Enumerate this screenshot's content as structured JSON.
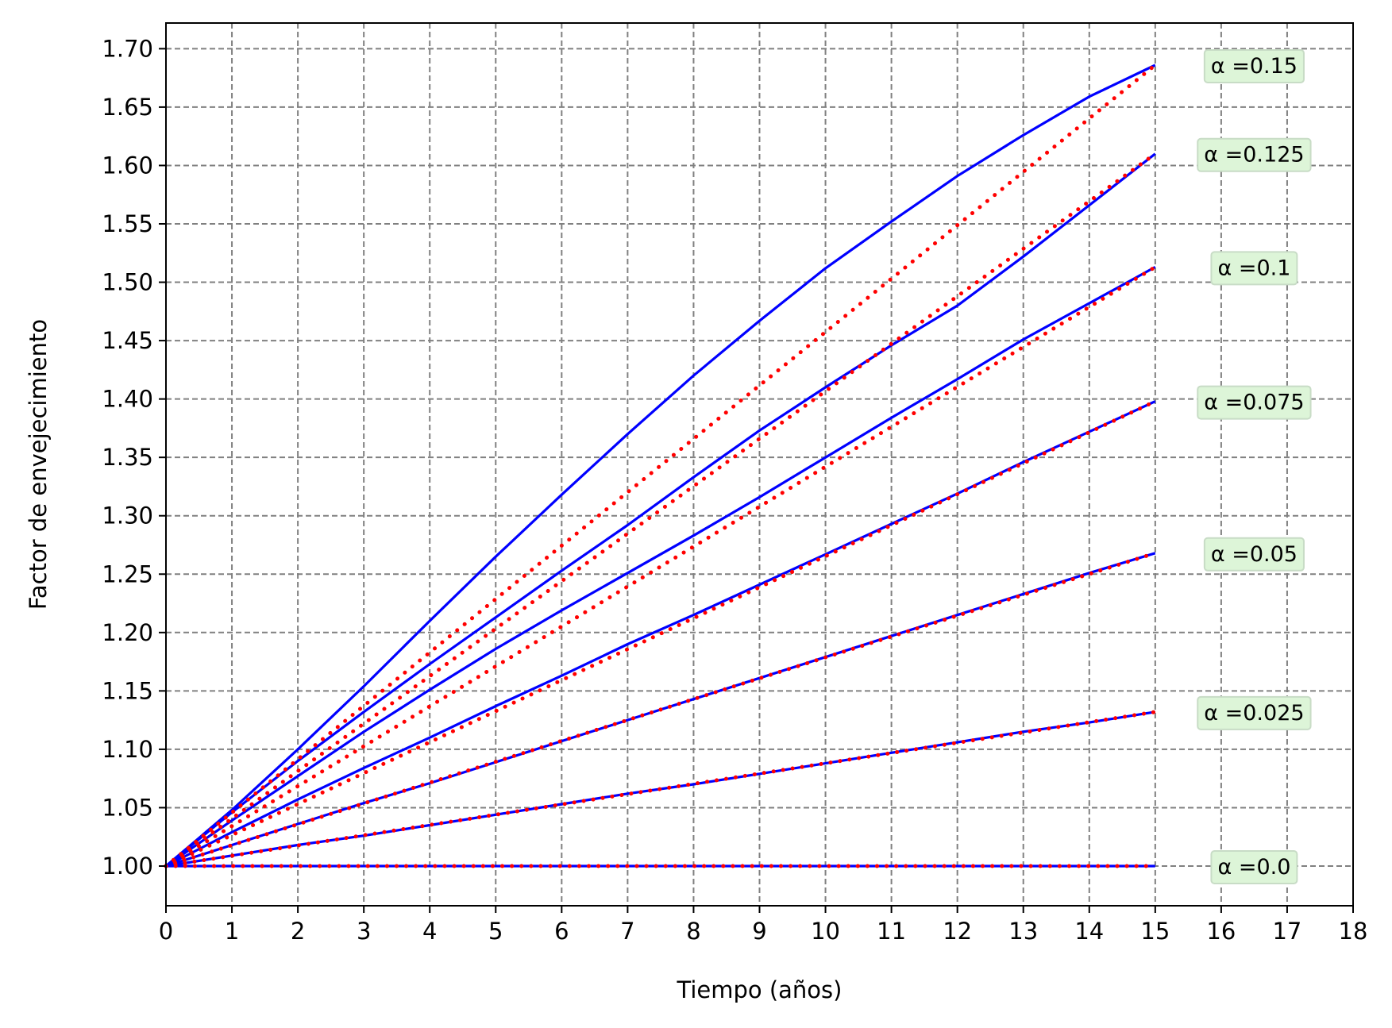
{
  "chart_data": {
    "type": "line",
    "title": "",
    "xlabel": "Tiempo (años)",
    "ylabel": "Factor de envejecimiento",
    "xlim": [
      0,
      18
    ],
    "ylim": [
      0.966,
      1.722
    ],
    "xticks": [
      0,
      1,
      2,
      3,
      4,
      5,
      6,
      7,
      8,
      9,
      10,
      11,
      12,
      13,
      14,
      15,
      16,
      17,
      18
    ],
    "yticks": [
      1.0,
      1.05,
      1.1,
      1.15,
      1.2,
      1.25,
      1.3,
      1.35,
      1.4,
      1.45,
      1.5,
      1.55,
      1.6,
      1.65,
      1.7
    ],
    "grid": true,
    "legend": "none",
    "colors": {
      "solid": "#0000ff",
      "dotted": "#ff0000",
      "annotation_bg": "#ddf5d8",
      "grid": "#808080"
    },
    "x": [
      0,
      1,
      2,
      3,
      4,
      5,
      6,
      7,
      8,
      9,
      10,
      11,
      12,
      13,
      14,
      15
    ],
    "series": [
      {
        "alpha": 0.0,
        "final": 1.0,
        "solid": [
          1.0,
          1.0,
          1.0,
          1.0,
          1.0,
          1.0,
          1.0,
          1.0,
          1.0,
          1.0,
          1.0,
          1.0,
          1.0,
          1.0,
          1.0,
          1.0
        ]
      },
      {
        "alpha": 0.025,
        "final": 1.132,
        "solid": [
          1.0,
          1.009,
          1.018,
          1.026,
          1.035,
          1.044,
          1.053,
          1.062,
          1.07,
          1.079,
          1.088,
          1.097,
          1.106,
          1.115,
          1.123,
          1.132
        ]
      },
      {
        "alpha": 0.05,
        "final": 1.268,
        "solid": [
          1.0,
          1.018,
          1.036,
          1.054,
          1.071,
          1.089,
          1.107,
          1.125,
          1.143,
          1.161,
          1.179,
          1.197,
          1.215,
          1.233,
          1.251,
          1.268
        ]
      },
      {
        "alpha": 0.075,
        "final": 1.398,
        "solid": [
          1.0,
          1.029,
          1.057,
          1.084,
          1.11,
          1.137,
          1.163,
          1.19,
          1.215,
          1.241,
          1.267,
          1.293,
          1.319,
          1.346,
          1.372,
          1.398
        ]
      },
      {
        "alpha": 0.1,
        "final": 1.513,
        "solid": [
          1.0,
          1.039,
          1.077,
          1.115,
          1.151,
          1.186,
          1.219,
          1.251,
          1.283,
          1.316,
          1.35,
          1.384,
          1.417,
          1.451,
          1.482,
          1.513
        ]
      },
      {
        "alpha": 0.125,
        "final": 1.61,
        "solid": [
          1.0,
          1.046,
          1.09,
          1.132,
          1.173,
          1.213,
          1.253,
          1.292,
          1.333,
          1.373,
          1.41,
          1.446,
          1.48,
          1.522,
          1.566,
          1.61
        ]
      },
      {
        "alpha": 0.15,
        "final": 1.686,
        "solid": [
          1.0,
          1.048,
          1.1,
          1.154,
          1.21,
          1.265,
          1.318,
          1.37,
          1.42,
          1.467,
          1.512,
          1.552,
          1.591,
          1.626,
          1.659,
          1.686
        ]
      }
    ],
    "annotations": [
      {
        "text": "α =0.15",
        "x": 16.5,
        "y": 1.686
      },
      {
        "text": "α =0.125",
        "x": 16.5,
        "y": 1.61
      },
      {
        "text": "α =0.1",
        "x": 16.5,
        "y": 1.513
      },
      {
        "text": "α =0.075",
        "x": 16.5,
        "y": 1.398
      },
      {
        "text": "α =0.05",
        "x": 16.5,
        "y": 1.268
      },
      {
        "text": "α =0.025",
        "x": 16.5,
        "y": 1.132
      },
      {
        "text": "α =0.0",
        "x": 16.5,
        "y": 1.0
      }
    ]
  }
}
